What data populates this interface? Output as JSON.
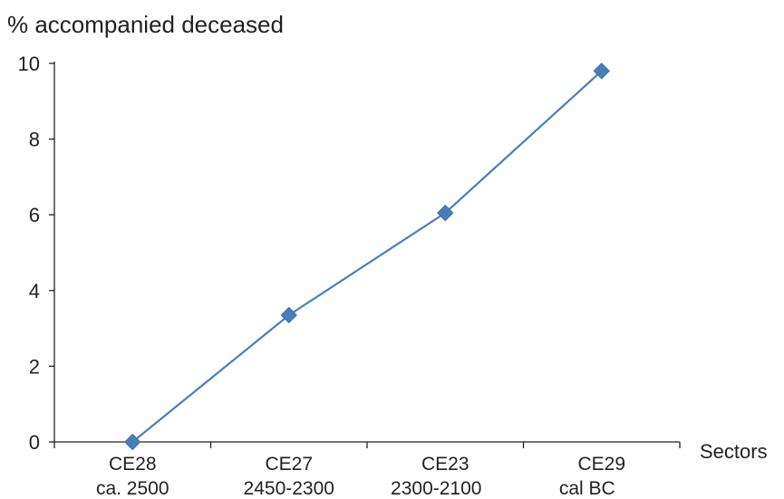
{
  "chart_data": {
    "type": "line",
    "ylabel": "% accompanied deceased",
    "xlabel": "Sectors",
    "categories": [
      "CE28",
      "CE27",
      "CE23",
      "CE29"
    ],
    "category_sublabels": [
      "ca. 2500",
      "2450-2300",
      "2300-2100",
      "cal BC"
    ],
    "y_ticks": [
      "0",
      "2",
      "4",
      "6",
      "8",
      "10"
    ],
    "ylim": [
      0,
      10
    ],
    "series": [
      {
        "values": [
          0,
          3.35,
          6.05,
          9.8
        ]
      }
    ],
    "grid": false,
    "colors": {
      "series": "#4a7ebb",
      "axis": "#231f20"
    }
  }
}
